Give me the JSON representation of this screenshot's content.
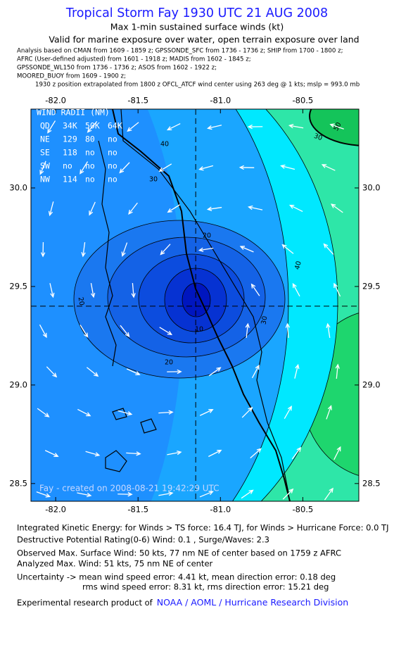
{
  "chart_data": {
    "type": "map",
    "title": "Tropical Storm Fay 1930 UTC 21 AUG 2008",
    "subtitles": [
      "Max 1-min sustained surface winds (kt)",
      "Valid for marine exposure over water, open terrain exposure over land"
    ],
    "analysis_notes": [
      "Analysis based on  CMAN from 1609 - 1859 z;  GPSSONDE_SFC from 1736 - 1736 z;  SHIP from 1700 - 1800 z;",
      "AFRC (User-defined adjusted) from 1601 - 1918 z;  MADIS from 1602 - 1845 z;",
      "GPSSONDE_WL150 from 1736 - 1736 z;  ASOS from 1602 - 1922 z;",
      "MOORED_BUOY from 1609 - 1900 z;"
    ],
    "position_note": "1930 z position extrapolated from 1800 z OFCL_ATCF wind center using 263 deg @ 1 kts; mslp = 993.0 mb",
    "xlim": [
      -82.15,
      -80.16
    ],
    "ylim": [
      28.41,
      30.4
    ],
    "xticks": [
      {
        "value": -82,
        "label": "-82.0"
      },
      -81.5,
      {
        "value": -81,
        "label": "-81.0"
      },
      -80.5
    ],
    "yticks": [
      {
        "value": 28.5,
        "label": "28.5"
      },
      {
        "value": 29,
        "label": "29.0"
      },
      29.5,
      {
        "value": 30,
        "label": "30.0"
      }
    ],
    "center": {
      "lon": -81.15,
      "lat": 29.4
    },
    "wind_radii": {
      "title": "WIND RADII (NM)",
      "rows": [
        [
          "QD",
          "34K",
          "50K",
          "64K"
        ],
        [
          "NE",
          "129",
          "80",
          "no"
        ],
        [
          "SE",
          "118",
          "no",
          "no"
        ],
        [
          "SW",
          "no",
          "no",
          "no"
        ],
        [
          "NW",
          "114",
          "no",
          "no"
        ]
      ]
    },
    "contour_labels": [
      50,
      30,
      40,
      30,
      20,
      10,
      20,
      20,
      30,
      40
    ],
    "credit": "Fay - created on 2008-08-21 19:42:29 UTC",
    "footer": [
      "Integrated Kinetic Energy:  for Winds > TS force: 16.4 TJ,  for Winds > Hurricane Force: 0.0 TJ",
      "Destructive Potential Rating(0-6)   Wind: 0.1 , Surge/Waves: 2.3",
      "Observed Max. Surface Wind: 50 kts, 77 nm NE of center based on 1759 z AFRC",
      "Analyzed Max. Wind: 51 kts, 75 nm NE of center",
      "Uncertainty -> mean wind speed error: 4.41 kt,   mean direction error: 0.18 deg",
      "rms wind speed error: 8.31 kt,   rms direction error: 15.21 deg"
    ],
    "product_note": "Experimental research product of",
    "product_link": "NOAA / AOML / Hurricane Research Division"
  }
}
